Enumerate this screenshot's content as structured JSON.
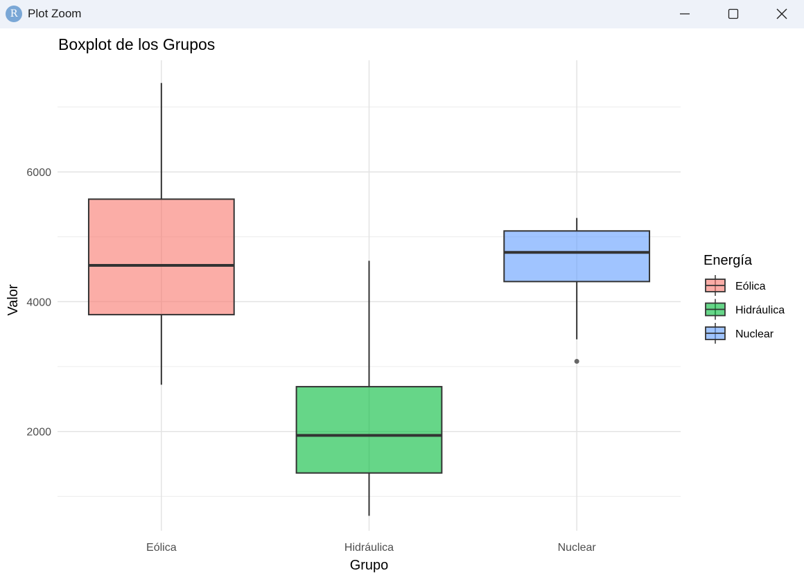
{
  "window": {
    "title": "Plot Zoom",
    "app_icon_letter": "R",
    "controls": [
      "minimize",
      "maximize",
      "close"
    ]
  },
  "chart_data": {
    "type": "boxplot",
    "title": "Boxplot de los Grupos",
    "xlabel": "Grupo",
    "ylabel": "Valor",
    "categories": [
      "Eólica",
      "Hidráulica",
      "Nuclear"
    ],
    "ylim": [
      470,
      7720
    ],
    "yticks": [
      2000,
      4000,
      6000
    ],
    "grid": true,
    "legend": {
      "title": "Energía",
      "position": "right"
    },
    "series": [
      {
        "name": "Eólica",
        "color": "#F8766D",
        "whisker_low": 2720,
        "q1": 3800,
        "median": 4560,
        "q3": 5580,
        "whisker_high": 7370,
        "outliers": []
      },
      {
        "name": "Hidráulica",
        "color": "#00BA38",
        "whisker_low": 700,
        "q1": 1360,
        "median": 1940,
        "q3": 2690,
        "whisker_high": 4630,
        "outliers": []
      },
      {
        "name": "Nuclear",
        "color": "#619CFF",
        "whisker_low": 3420,
        "q1": 4310,
        "median": 4760,
        "q3": 5090,
        "whisker_high": 5290,
        "outliers": [
          3080
        ]
      }
    ]
  }
}
